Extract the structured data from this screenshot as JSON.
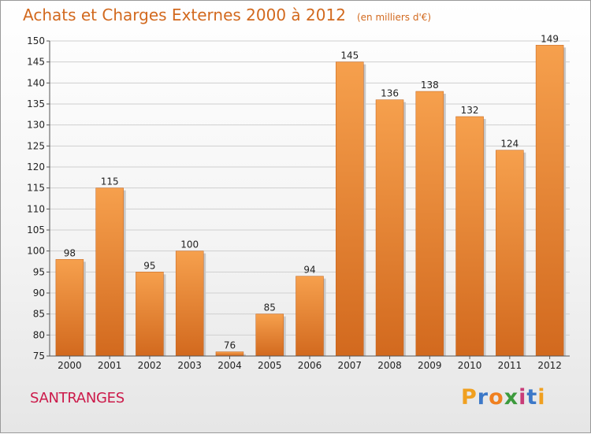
{
  "chart_data": {
    "type": "bar",
    "title": "Achats et Charges Externes 2000 à 2012",
    "subtitle": "(en milliers d'€)",
    "categories": [
      "2000",
      "2001",
      "2002",
      "2003",
      "2004",
      "2005",
      "2006",
      "2007",
      "2008",
      "2009",
      "2010",
      "2011",
      "2012"
    ],
    "values": [
      98,
      115,
      95,
      100,
      76,
      85,
      94,
      145,
      136,
      138,
      132,
      124,
      149
    ],
    "ylim": [
      75,
      150
    ],
    "yticks": [
      75,
      80,
      85,
      90,
      95,
      100,
      105,
      110,
      115,
      120,
      125,
      130,
      135,
      140,
      145,
      150
    ],
    "grid": true,
    "bar_color_top": "#f6a04d",
    "bar_color_bottom": "#d2691e",
    "xlabel": "",
    "ylabel": ""
  },
  "footer": {
    "location": "SANTRANGES",
    "brand": [
      "P",
      "r",
      "o",
      "x",
      "i",
      "t",
      "i"
    ],
    "brand_colors": [
      "#f0a020",
      "#3c78c8",
      "#f08020",
      "#3c9a3c",
      "#c83c78",
      "#3c78c8",
      "#f0a020"
    ]
  }
}
